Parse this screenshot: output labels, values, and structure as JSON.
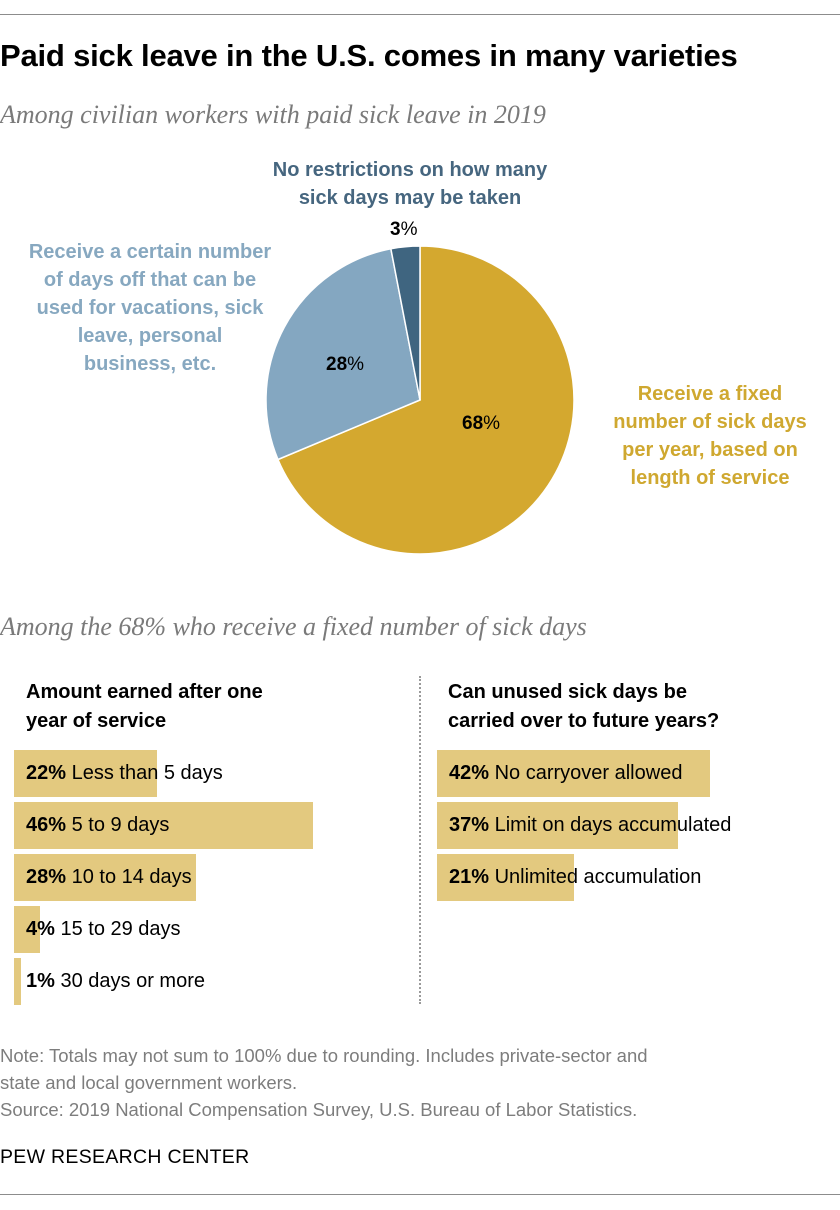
{
  "title": "Paid sick leave in the U.S. comes in many varieties",
  "subtitle1": "Among civilian workers with paid sick leave in 2019",
  "subtitle2": "Among the 68% who receive a fixed number of sick days",
  "chart_data": [
    {
      "type": "pie",
      "slices": [
        {
          "label": "Receive a fixed number of sick days per year, based on length of service",
          "value": 68,
          "color": "#d4a82f"
        },
        {
          "label": "Receive a certain number of days off that can be used for vacations, sick leave, personal business, etc.",
          "value": 28,
          "color": "#84a7c1"
        },
        {
          "label": "No restrictions on how many sick days may be taken",
          "value": 3,
          "color": "#3f6580"
        }
      ]
    },
    {
      "type": "bar",
      "title": "Amount earned after one year of service",
      "categories": [
        "Less than 5 days",
        "5 to 9 days",
        "10 to 14 days",
        "15 to 29 days",
        "30 days or more"
      ],
      "values": [
        22,
        46,
        28,
        4,
        1
      ],
      "color": "#e3c97f"
    },
    {
      "type": "bar",
      "title": "Can unused sick days be carried over to future years?",
      "categories": [
        "No carryover allowed",
        "Limit on days accumulated",
        "Unlimited accumulation"
      ],
      "values": [
        42,
        37,
        21
      ],
      "color": "#e3c97f"
    }
  ],
  "pie_labels": {
    "gray_line1": "No restrictions on how many",
    "gray_line2": "sick days may be taken",
    "blue_line1": "Receive a certain number",
    "blue_line2": "of days off that can be",
    "blue_line3": "used for vacations, sick",
    "blue_line4": "leave, personal",
    "blue_line5": "business, etc.",
    "gold_line1": "Receive a fixed",
    "gold_line2": "number of sick days",
    "gold_line3": "per year, based on",
    "gold_line4": "length of service",
    "pct_gray": "3",
    "pct_blue": "28",
    "pct_gold": "68",
    "pct_sign": "%"
  },
  "left_head": {
    "line1": "Amount earned after one",
    "line2": "year of service"
  },
  "right_head": {
    "line1": "Can unused sick days be",
    "line2": "carried over to future years?"
  },
  "note1": "Note: Totals may not sum to 100% due to rounding. Includes private-sector and",
  "note2": "state and local government workers.",
  "source": "Source: 2019 National Compensation Survey, U.S. Bureau of Labor Statistics.",
  "brand": "PEW RESEARCH CENTER"
}
